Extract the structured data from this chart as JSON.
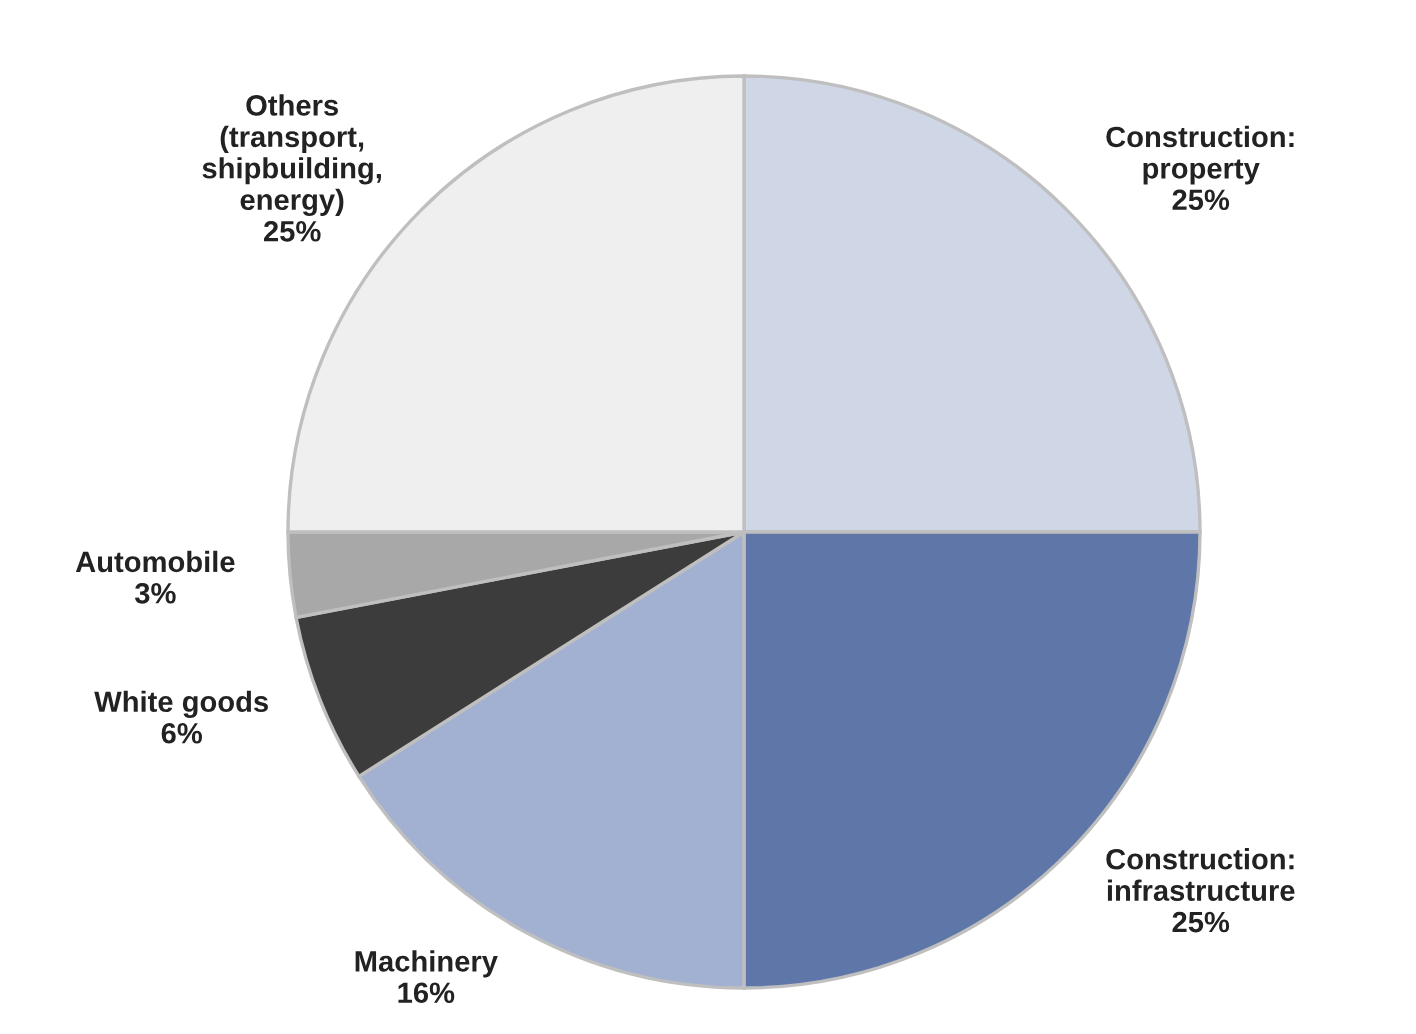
{
  "chart_data": {
    "type": "pie",
    "categories": [
      "Construction:\nproperty",
      "Construction:\ninfrastructure",
      "Machinery",
      "White goods",
      "Automobile",
      "Others\n(transport,\nshipbuilding,\nenergy)"
    ],
    "values": [
      25,
      25,
      16,
      6,
      3,
      25
    ],
    "value_labels": [
      "25%",
      "25%",
      "16%",
      "6%",
      "3%",
      "25%"
    ],
    "colors": [
      "#cfd7e7",
      "#5f77a8",
      "#a2b0d2",
      "#3c3c3c",
      "#a8a8a8",
      "#efefef"
    ],
    "legend": false
  }
}
